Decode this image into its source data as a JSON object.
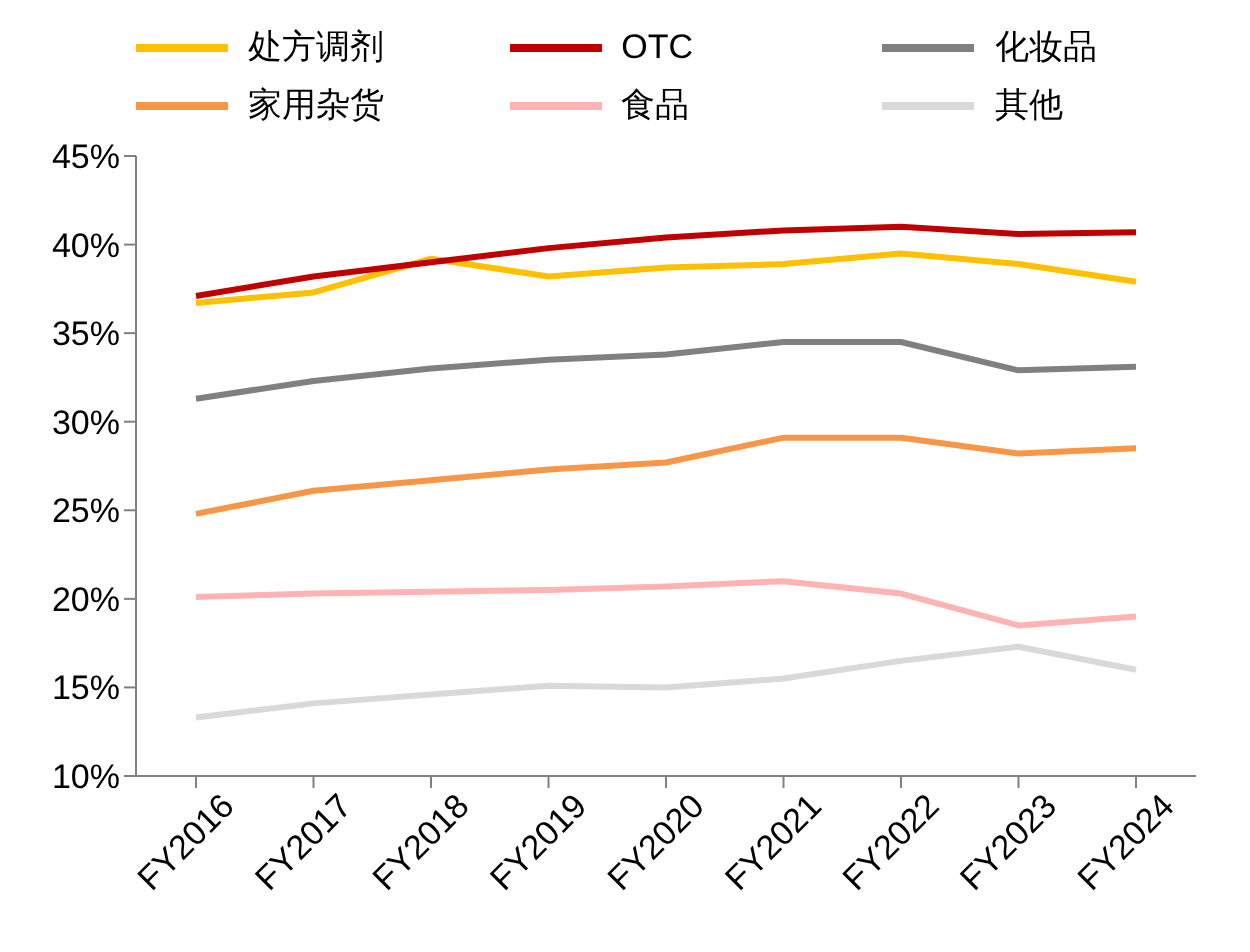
{
  "chart_data": {
    "type": "line",
    "categories": [
      "FY2016",
      "FY2017",
      "FY2018",
      "FY2019",
      "FY2020",
      "FY2021",
      "FY2022",
      "FY2023",
      "FY2024"
    ],
    "series": [
      {
        "name": "处方调剂",
        "color": "#ffc000",
        "values": [
          36.7,
          37.3,
          39.2,
          38.2,
          38.7,
          38.9,
          39.5,
          38.9,
          37.9
        ]
      },
      {
        "name": "OTC",
        "color": "#c00000",
        "values": [
          37.1,
          38.2,
          39.0,
          39.8,
          40.4,
          40.8,
          41.0,
          40.6,
          40.7
        ]
      },
      {
        "name": "化妆品",
        "color": "#808080",
        "values": [
          31.3,
          32.3,
          33.0,
          33.5,
          33.8,
          34.5,
          34.5,
          32.9,
          33.1
        ]
      },
      {
        "name": "家用杂货",
        "color": "#f79646",
        "values": [
          24.8,
          26.1,
          26.7,
          27.3,
          27.7,
          29.1,
          29.1,
          28.2,
          28.5
        ]
      },
      {
        "name": "食品",
        "color": "#ffb3b3",
        "values": [
          20.1,
          20.3,
          20.4,
          20.5,
          20.7,
          21.0,
          20.3,
          18.5,
          19.0
        ]
      },
      {
        "name": "其他",
        "color": "#d9d9d9",
        "values": [
          13.3,
          14.1,
          14.6,
          15.1,
          15.0,
          15.5,
          16.5,
          17.3,
          16.0
        ]
      }
    ],
    "ylim": [
      10,
      45
    ],
    "yticks": [
      {
        "value": 10,
        "label": "10%"
      },
      {
        "value": 15,
        "label": "15%"
      },
      {
        "value": 20,
        "label": "20%"
      },
      {
        "value": 25,
        "label": "25%"
      },
      {
        "value": 30,
        "label": "30%"
      },
      {
        "value": 35,
        "label": "35%"
      },
      {
        "value": 40,
        "label": "40%"
      },
      {
        "value": 45,
        "label": "45%"
      }
    ],
    "grid": false,
    "legend": "top",
    "marker": "none",
    "line_style": "solid"
  }
}
